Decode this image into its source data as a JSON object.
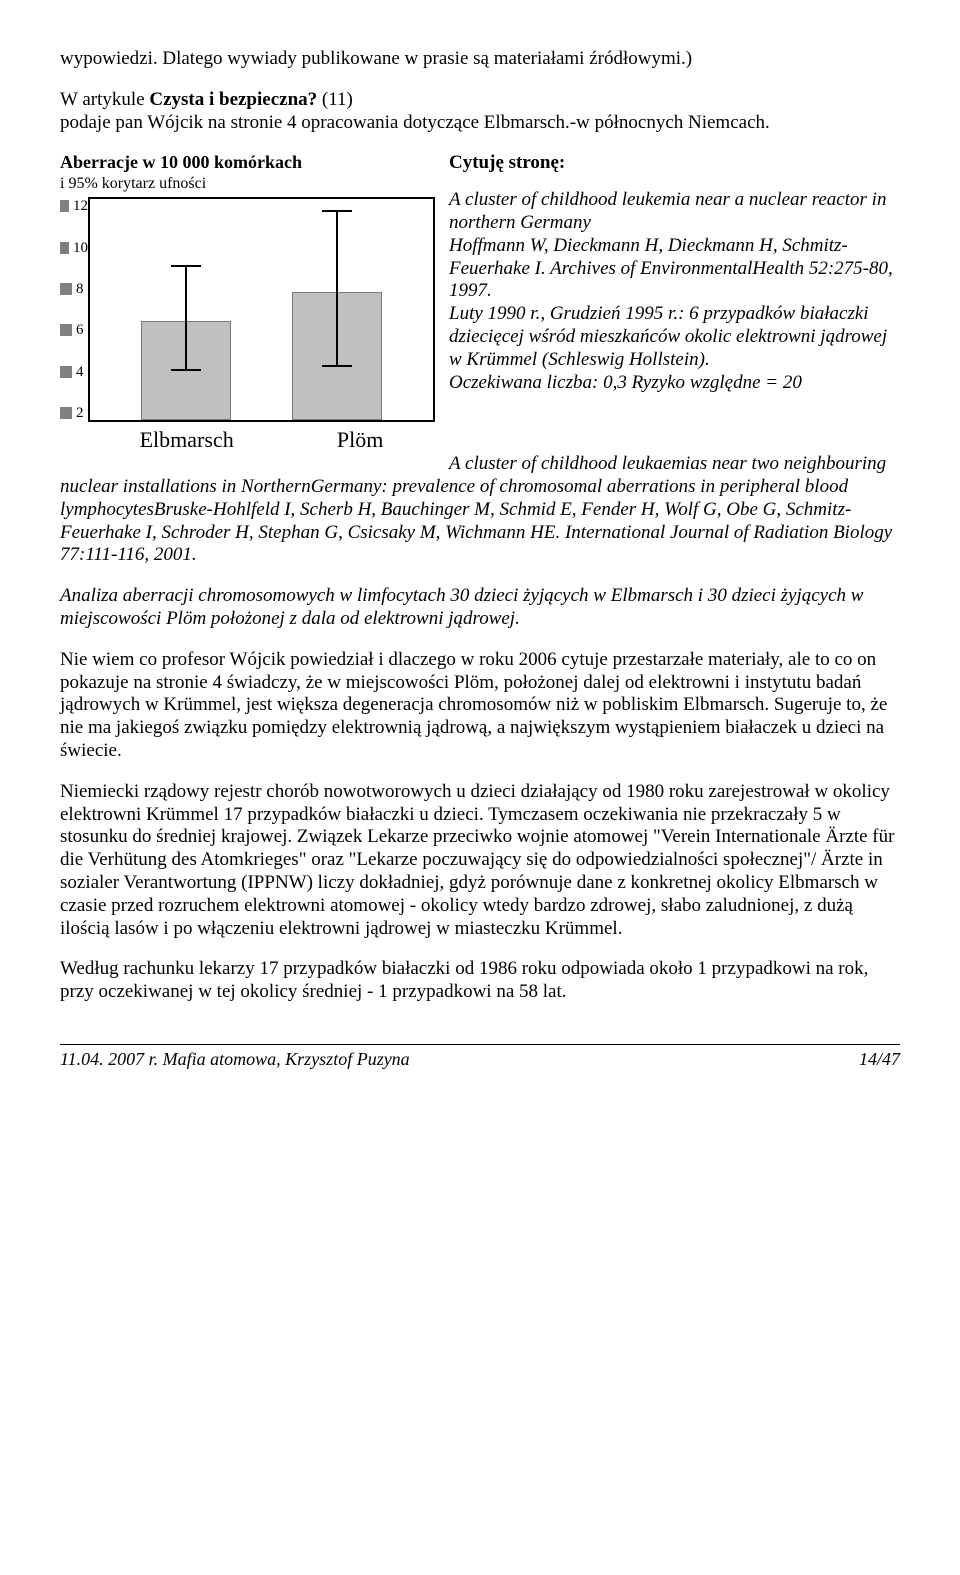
{
  "intro": {
    "line1_a": "wypowiedzi. Dlatego wywiady publikowane w prasie  są materiałami źródłowymi.)",
    "line2_a": "W artykule ",
    "line2_b": "Czysta i bezpieczna?",
    "line2_c": "  (11)",
    "line3": "podaje pan Wójcik na stronie 4 opracowania dotyczące Elbmarsch.-w północnych Niemcach."
  },
  "chart": {
    "title": "Aberracje w 10 000 komórkach",
    "subtitle": "i 95% korytarz ufności",
    "categories": [
      "Elbmarsch",
      "Plöm"
    ],
    "values": [
      6.5,
      7.8
    ],
    "err_low": [
      4.3,
      4.5
    ],
    "err_high": [
      9.0,
      11.5
    ],
    "yticks": [
      2,
      4,
      6,
      8,
      10,
      12
    ],
    "ylim": [
      2,
      12
    ],
    "bar_fill": "#c0c0c0",
    "bar_stroke": "#7a7a7a",
    "tick_box": "#808080",
    "bg": "#ffffff"
  },
  "citation": {
    "heading": "Cytuję stronę:",
    "block": "A cluster of childhood leukemia near a nuclear reactor in northern Germany\nHoffmann W, Dieckmann H, Dieckmann H, Schmitz-Feuerhake I. Archives of EnvironmentalHealth 52:275-80, 1997.\nLuty 1990  r., Grudzień 1995 r.: 6 przypadków białaczki dziecięcej wśród mieszkańców okolic elektrowni jądrowej w Krümmel (Schleswig Hollstein).\nOczekiwana liczba: 0,3 Ryzyko względne = 20",
    "after": "A cluster of childhood leukaemias near two neighbouring nuclear installations in NorthernGermany: prevalence of chromosomal aberrations in peripheral blood lymphocytesBruske-Hohlfeld I, Scherb H, Bauchinger M, Schmid E, Fender H, Wolf G, Obe G, Schmitz-Feuerhake I, Schroder H, Stephan G, Csicsaky M, Wichmann HE. International Journal of Radiation Biology 77:111-116, 2001."
  },
  "analysis": "Analiza aberracji chromosomowych w limfocytach 30 dzieci żyjących w Elbmarsch i 30 dzieci żyjących w miejscowości Plöm położonej z dala od elektrowni jądrowej.",
  "p1": "Nie wiem co profesor Wójcik powiedział i dlaczego w roku 2006  cytuje przestarzałe materiały, ale to co on pokazuje na stronie 4 świadczy, że w miejscowości Plöm, położonej dalej od  elektrowni i instytutu badań jądrowych w Krümmel, jest większa degeneracja chromosomów niż w pobliskim Elbmarsch. Sugeruje to, że nie ma jakiegoś związku pomiędzy elektrownią jądrową, a największym wystąpieniem białaczek u dzieci na świecie.",
  "p2": "Niemiecki rządowy rejestr chorób nowotworowych u dzieci działający od 1980 roku zarejestrował w okolicy elektrowni Krümmel 17 przypadków białaczki u dzieci. Tymczasem oczekiwania nie przekraczały 5 w stosunku do średniej krajowej. Związek Lekarze przeciwko wojnie atomowej \"Verein Internationale Ärzte für die Verhütung des Atomkrieges\" oraz \"Lekarze poczuwający się do odpowiedzialności społecznej\"/ Ärzte in sozialer Verantwortung (IPPNW) liczy dokładniej, gdyż porównuje dane z konkretnej okolicy Elbmarsch w czasie przed rozruchem elektrowni atomowej - okolicy wtedy bardzo zdrowej, słabo zaludnionej, z dużą ilością lasów i po włączeniu elektrowni jądrowej w miasteczku Krümmel.",
  "p3": "Według rachunku lekarzy 17 przypadków białaczki od 1986 roku odpowiada około 1 przypadkowi na rok, przy oczekiwanej w tej okolicy średniej - 1 przypadkowi na 58 lat.",
  "footer": {
    "left": "11.04. 2007 r.  Mafia atomowa, Krzysztof Puzyna",
    "right": "14/47"
  }
}
